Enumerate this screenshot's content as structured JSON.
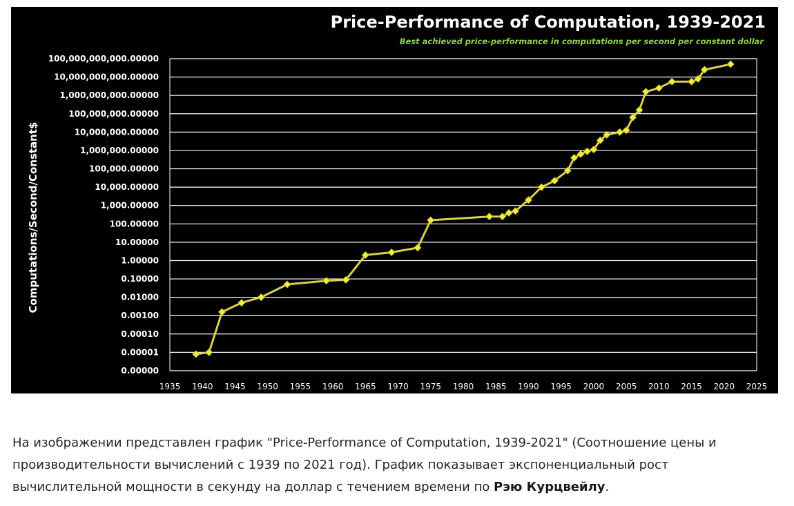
{
  "chart_data": {
    "type": "line",
    "title": "Price-Performance of Computation, 1939-2021",
    "subtitle": "Best achieved price-performance in computations per second per constant dollar",
    "xlabel": "",
    "ylabel": "Computations/Second/Constant$",
    "xlim": [
      1935,
      2025
    ],
    "x_ticks": [
      "1935",
      "1940",
      "1945",
      "1950",
      "1955",
      "1960",
      "1965",
      "1970",
      "1975",
      "1980",
      "1985",
      "1990",
      "1995",
      "2000",
      "2005",
      "2010",
      "2015",
      "2020",
      "2025"
    ],
    "y_scale": "log",
    "y_ticks": [
      "0.00000",
      "0.00001",
      "0.00010",
      "0.00100",
      "0.01000",
      "0.10000",
      "1.00000",
      "10.00000",
      "100.00000",
      "1,000.00000",
      "10,000.00000",
      "100,000.00000",
      "1,000,000.00000",
      "10,000,000.00000",
      "100,000,000.00000",
      "1,000,000,000.00000",
      "10,000,000,000.00000",
      "100,000,000,000.00000"
    ],
    "grid": true,
    "colors": {
      "background": "#000000",
      "line": "#d9d24a",
      "marker": "#f2ee3a",
      "text": "#ffffff",
      "subtitle": "#8fd44a",
      "grid": "#ffffff"
    },
    "series": [
      {
        "name": "Best achieved price-performance",
        "x": [
          1939,
          1941,
          1943,
          1946,
          1949,
          1953,
          1959,
          1962,
          1965,
          1969,
          1973,
          1975,
          1984,
          1986,
          1987,
          1988,
          1990,
          1992,
          1994,
          1996,
          1997,
          1998,
          1999,
          2000,
          2001,
          2002,
          2004,
          2005,
          2006,
          2007,
          2008,
          2010,
          2012,
          2015,
          2016,
          2017,
          2021
        ],
        "log10_y": [
          -5.1,
          -5.0,
          -2.8,
          -2.3,
          -2.0,
          -1.3,
          -1.1,
          -1.05,
          0.3,
          0.45,
          0.7,
          2.2,
          2.4,
          2.4,
          2.6,
          2.7,
          3.3,
          4.0,
          4.35,
          4.9,
          5.6,
          5.8,
          5.95,
          6.05,
          6.55,
          6.85,
          7.0,
          7.1,
          7.8,
          8.2,
          9.2,
          9.4,
          9.75,
          9.75,
          9.9,
          10.4,
          10.7
        ]
      }
    ]
  },
  "caption": {
    "text": "На изображении представлен график \"Price-Performance of Computation, 1939-2021\" (Соотношение цены и производительности вычислений с 1939 по 2021 год). График показывает экспоненциальный рост вычислительной мощности в секунду на доллар с течением времени по ",
    "link": "Рэю Курцвейлу",
    "end": "."
  }
}
